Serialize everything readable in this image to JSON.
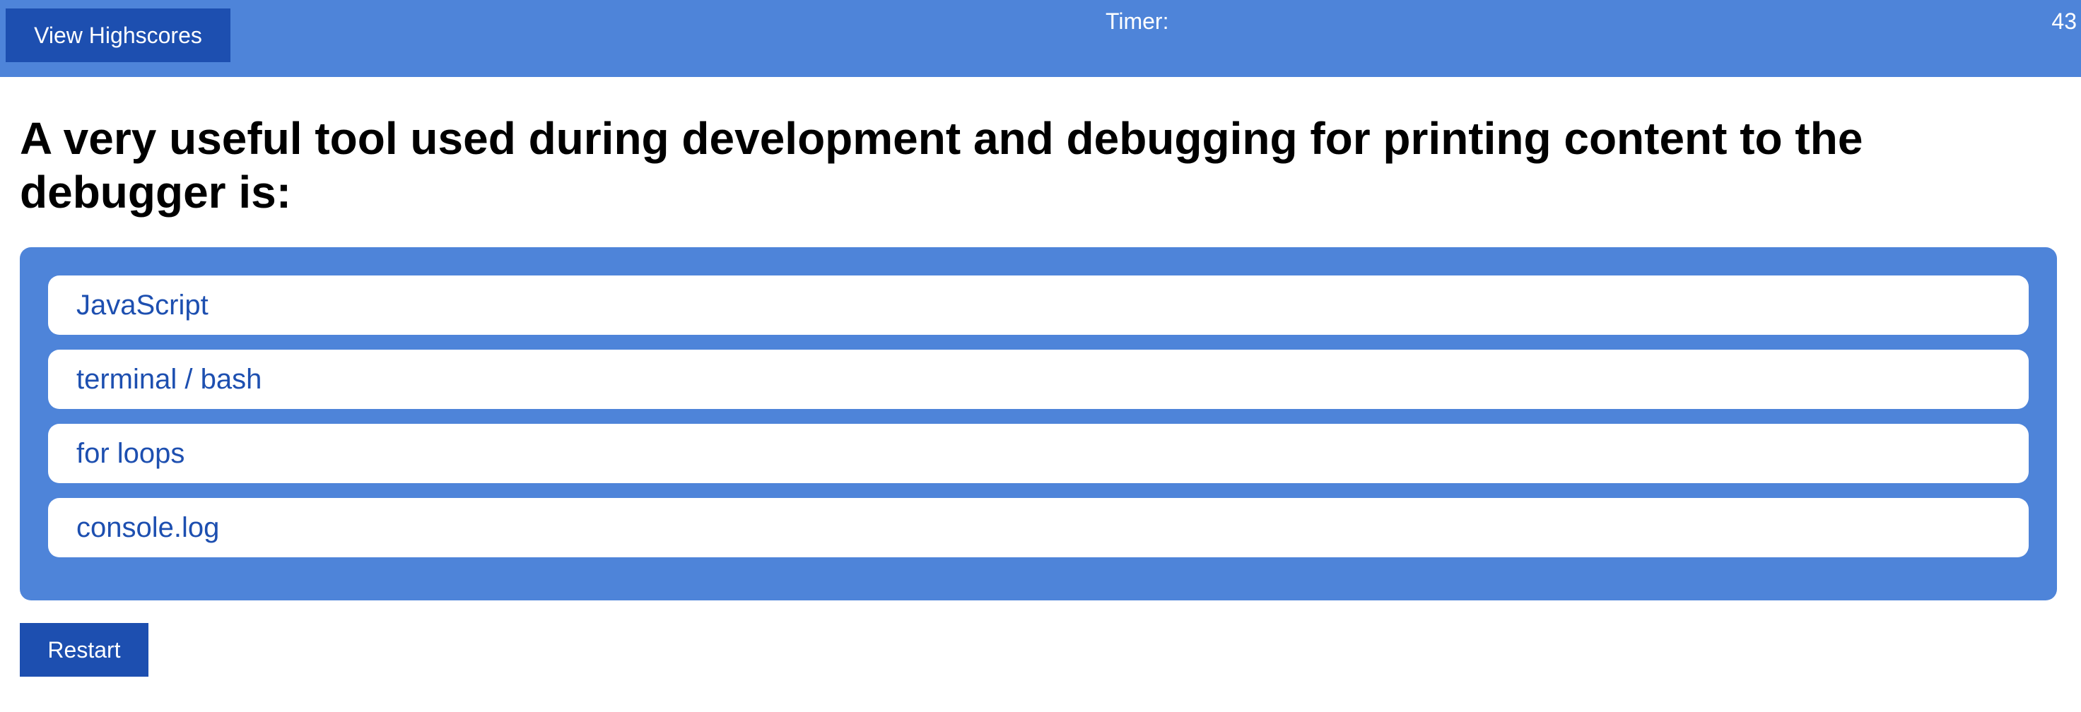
{
  "header": {
    "highscores_label": "View Highscores",
    "timer_label": "Timer:",
    "timer_value": "43"
  },
  "question": {
    "text": "A very useful tool used during development and debugging for printing content to the debugger is:"
  },
  "answers": [
    {
      "label": "JavaScript"
    },
    {
      "label": "terminal / bash"
    },
    {
      "label": "for loops"
    },
    {
      "label": "console.log"
    }
  ],
  "restart_label": "Restart",
  "colors": {
    "accent": "#4e84d9",
    "button": "#1d4fb0",
    "answer_text": "#1d4fb0"
  }
}
